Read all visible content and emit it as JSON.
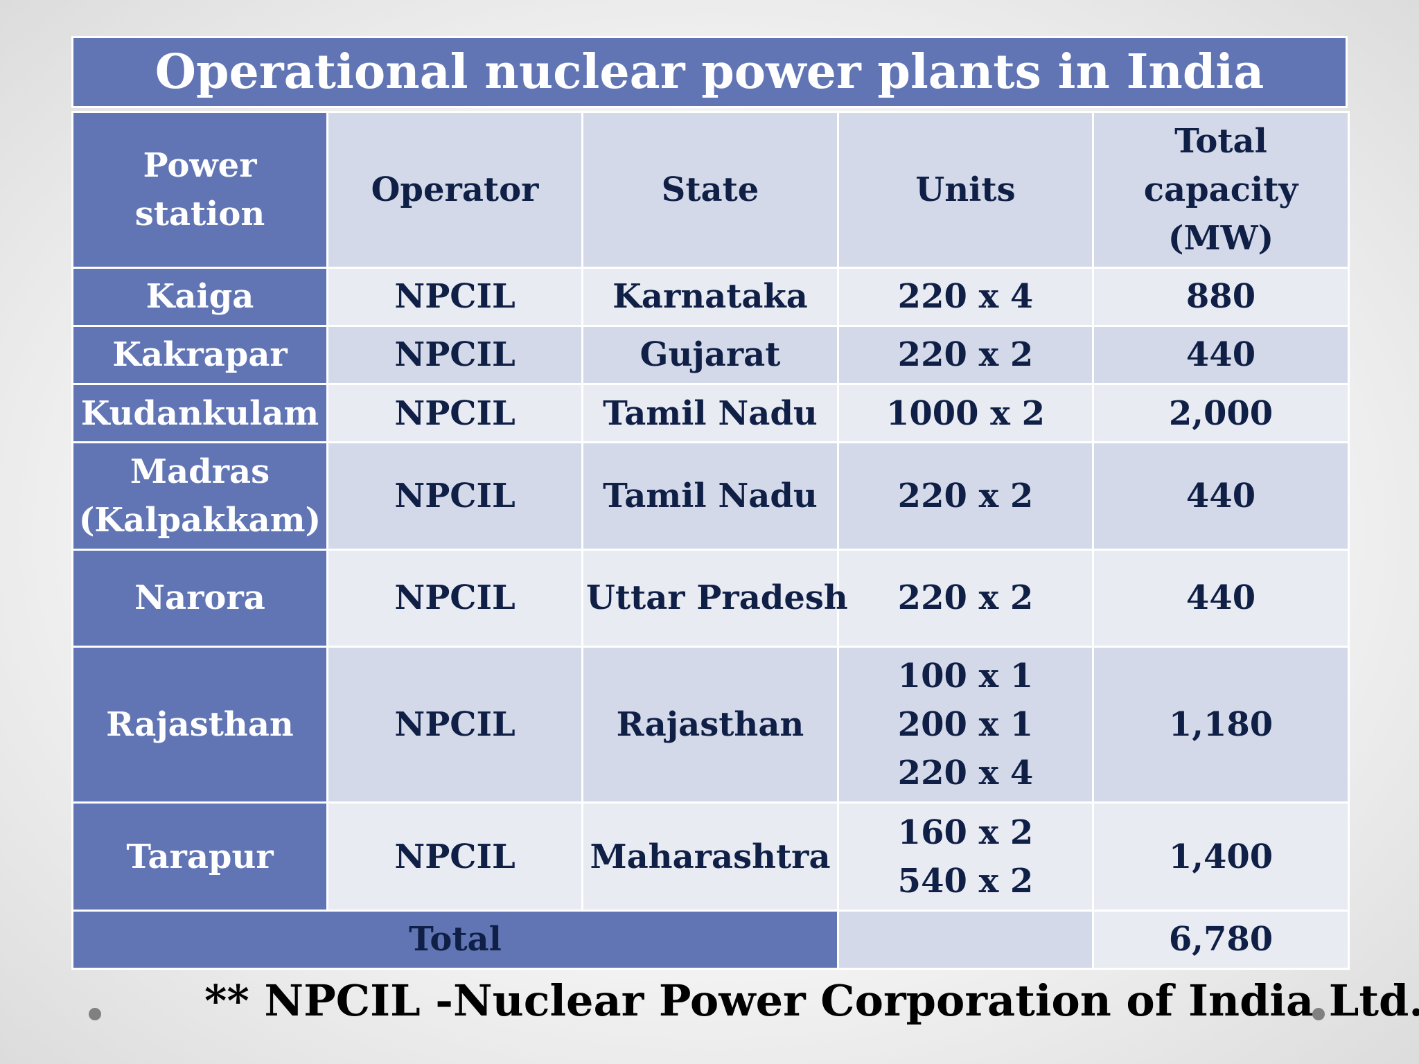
{
  "title": "Operational nuclear power plants in India",
  "headers": {
    "station": [
      "Power",
      "station"
    ],
    "operator": "Operator",
    "state": "State",
    "units": "Units",
    "capacity": [
      "Total",
      "capacity",
      "(MW)"
    ]
  },
  "rows": [
    {
      "station": [
        "Kaiga"
      ],
      "operator": "NPCIL",
      "state": "Karnataka",
      "units": [
        "220 x 4"
      ],
      "capacity": "880"
    },
    {
      "station": [
        "Kakrapar"
      ],
      "operator": "NPCIL",
      "state": "Gujarat",
      "units": [
        "220 x 2"
      ],
      "capacity": "440"
    },
    {
      "station": [
        "Kudankulam"
      ],
      "operator": "NPCIL",
      "state": "Tamil Nadu",
      "units": [
        "1000 x 2"
      ],
      "capacity": "2,000"
    },
    {
      "station": [
        "Madras",
        "(Kalpakkam)"
      ],
      "operator": "NPCIL",
      "state": "Tamil Nadu",
      "units": [
        "220 x 2"
      ],
      "capacity": "440"
    },
    {
      "station": [
        "Narora"
      ],
      "operator": "NPCIL",
      "state": "Uttar Pradesh",
      "units": [
        "220 x 2"
      ],
      "capacity": "440"
    },
    {
      "station": [
        "Rajasthan"
      ],
      "operator": "NPCIL",
      "state": "Rajasthan",
      "units": [
        "100 x 1",
        "200 x 1",
        "220 x 4"
      ],
      "capacity": "1,180"
    },
    {
      "station": [
        "Tarapur"
      ],
      "operator": "NPCIL",
      "state": "Maharashtra",
      "units": [
        "160 x 2",
        "540 x 2"
      ],
      "capacity": "1,400"
    }
  ],
  "total": {
    "label": "Total",
    "units": "",
    "capacity": "6,780"
  },
  "footnote": "** NPCIL -Nuclear Power Corporation of India Ltd.",
  "colors": {
    "header_blue": "#6175b5",
    "band_light": "#e9ebf3",
    "band_mid": "#d3d9e8",
    "text_dark": "#0f1f46"
  }
}
